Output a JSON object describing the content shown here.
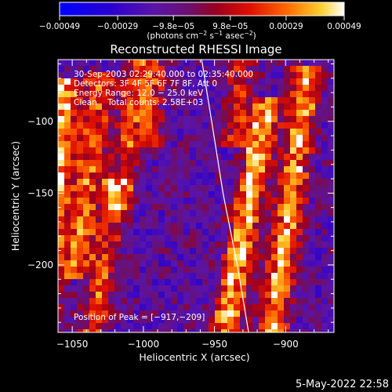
{
  "chart_data": {
    "type": "heatmap",
    "title": "Reconstructed RHESSI Image",
    "xlabel": "Heliocentric X (arcsec)",
    "ylabel": "Heliocentric Y (arcsec)",
    "xlim": [
      -1060,
      -866
    ],
    "ylim": [
      -247,
      -57
    ],
    "xticks": [
      -1050,
      -1000,
      -950,
      -900
    ],
    "yticks": [
      -200,
      -150,
      -100
    ],
    "xtick_labels": [
      "−1050",
      "−1000",
      "−950",
      "−900"
    ],
    "ytick_labels": [
      "−200",
      "−150",
      "−100"
    ],
    "colorbar": {
      "range": [
        -0.00049,
        0.00049
      ],
      "ticks": [
        -0.00049,
        -0.00029,
        -9.8e-05,
        9.8e-05,
        0.00029,
        0.00049
      ],
      "tick_labels": [
        "−0.00049",
        "−0.00029",
        "−9.8e−05",
        "9.8e−05",
        "0.00029",
        "0.00049"
      ],
      "units_main": "(photons cm",
      "units_exp1": "−2",
      "units_mid1": " s",
      "units_exp2": "−1",
      "units_mid2": " asec",
      "units_exp3": "−2",
      "units_end": ")"
    },
    "info_lines": [
      "30-Sep-2003 02:29:40.000 to 02:35:40.000",
      "Detectors: 3F 4F 5F 6F 7F 8F, Att 0",
      "Energy Range: 12.0 − 25.0 keV",
      "Clean    Total counts: 2.58E+03"
    ],
    "peak_text": "Position of Peak = [−917,−209]",
    "peak": [
      -917,
      -209
    ],
    "limb": [
      [
        -959,
        -57
      ],
      [
        -952,
        -100
      ],
      [
        -944,
        -150
      ],
      [
        -934,
        -200
      ],
      [
        -926,
        -247
      ]
    ],
    "streaks": [
      {
        "x": -1055,
        "y0": -80,
        "y1": -230,
        "slope": 0.1,
        "peak": 1.0
      },
      {
        "x": -1030,
        "y0": -75,
        "y1": -200,
        "slope": 0.14,
        "peak": 0.75
      },
      {
        "x": -1020,
        "y0": -150,
        "y1": -240,
        "slope": 0.16,
        "peak": 0.6
      },
      {
        "x": -1005,
        "y0": -60,
        "y1": -150,
        "slope": 0.12,
        "peak": 0.5
      },
      {
        "x": -992,
        "y0": -60,
        "y1": -110,
        "slope": 0.1,
        "peak": 0.55
      },
      {
        "x": -930,
        "y0": -60,
        "y1": -110,
        "slope": 0.15,
        "peak": 0.5
      },
      {
        "x": -915,
        "y0": -95,
        "y1": -247,
        "slope": 0.18,
        "peak": 1.0
      },
      {
        "x": -885,
        "y0": -70,
        "y1": -247,
        "slope": 0.14,
        "peak": 0.95
      }
    ],
    "colors": {
      "background": "#000000",
      "foreground": "#ffffff"
    }
  },
  "footer": {
    "timestamp": "5-May-2022 22:58"
  }
}
